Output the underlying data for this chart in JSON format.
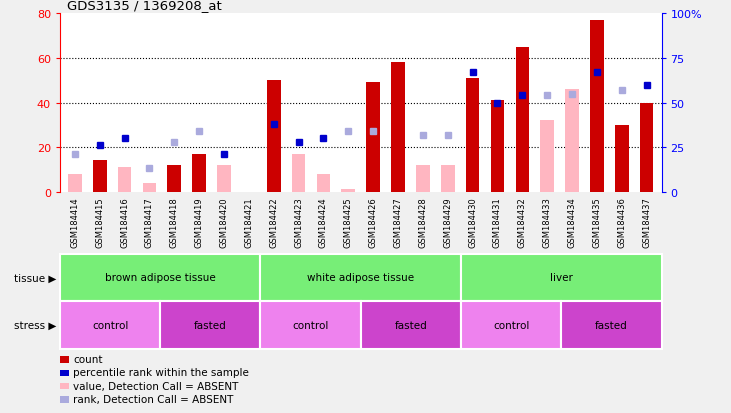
{
  "title": "GDS3135 / 1369208_at",
  "samples": [
    "GSM184414",
    "GSM184415",
    "GSM184416",
    "GSM184417",
    "GSM184418",
    "GSM184419",
    "GSM184420",
    "GSM184421",
    "GSM184422",
    "GSM184423",
    "GSM184424",
    "GSM184425",
    "GSM184426",
    "GSM184427",
    "GSM184428",
    "GSM184429",
    "GSM184430",
    "GSM184431",
    "GSM184432",
    "GSM184433",
    "GSM184434",
    "GSM184435",
    "GSM184436",
    "GSM184437"
  ],
  "count_present": [
    null,
    14,
    null,
    null,
    12,
    17,
    null,
    null,
    50,
    null,
    null,
    null,
    49,
    58,
    null,
    null,
    51,
    41,
    65,
    null,
    null,
    77,
    30,
    40
  ],
  "count_absent": [
    8,
    null,
    11,
    4,
    null,
    null,
    12,
    null,
    null,
    17,
    8,
    1,
    null,
    null,
    12,
    12,
    null,
    null,
    null,
    32,
    46,
    null,
    null,
    null
  ],
  "rank_present": [
    null,
    26,
    30,
    null,
    null,
    null,
    21,
    null,
    38,
    28,
    30,
    null,
    null,
    null,
    null,
    null,
    67,
    50,
    54,
    null,
    null,
    67,
    null,
    60
  ],
  "rank_absent": [
    21,
    null,
    null,
    13,
    28,
    34,
    null,
    null,
    null,
    null,
    null,
    34,
    34,
    null,
    32,
    32,
    null,
    null,
    null,
    54,
    55,
    null,
    57,
    null
  ],
  "tissue_groups": [
    {
      "label": "brown adipose tissue",
      "start": 0,
      "end": 8
    },
    {
      "label": "white adipose tissue",
      "start": 8,
      "end": 16
    },
    {
      "label": "liver",
      "start": 16,
      "end": 24
    }
  ],
  "stress_groups": [
    {
      "label": "control",
      "start": 0,
      "end": 4,
      "color": "#EE82EE"
    },
    {
      "label": "fasted",
      "start": 4,
      "end": 8,
      "color": "#CC44CC"
    },
    {
      "label": "control",
      "start": 8,
      "end": 12,
      "color": "#EE82EE"
    },
    {
      "label": "fasted",
      "start": 12,
      "end": 16,
      "color": "#CC44CC"
    },
    {
      "label": "control",
      "start": 16,
      "end": 20,
      "color": "#EE82EE"
    },
    {
      "label": "fasted",
      "start": 20,
      "end": 24,
      "color": "#CC44CC"
    }
  ],
  "ylim": [
    0,
    80
  ],
  "yticks": [
    0,
    20,
    40,
    60,
    80
  ],
  "y2ticks": [
    0,
    25,
    50,
    75,
    100
  ],
  "bar_color_present": "#CC0000",
  "bar_color_absent": "#FFB6C1",
  "rank_color_present": "#0000CC",
  "rank_color_absent": "#AAAADD",
  "tissue_color": "#77EE77",
  "label_bg": "#CCCCCC",
  "fig_bg": "#F0F0F0"
}
